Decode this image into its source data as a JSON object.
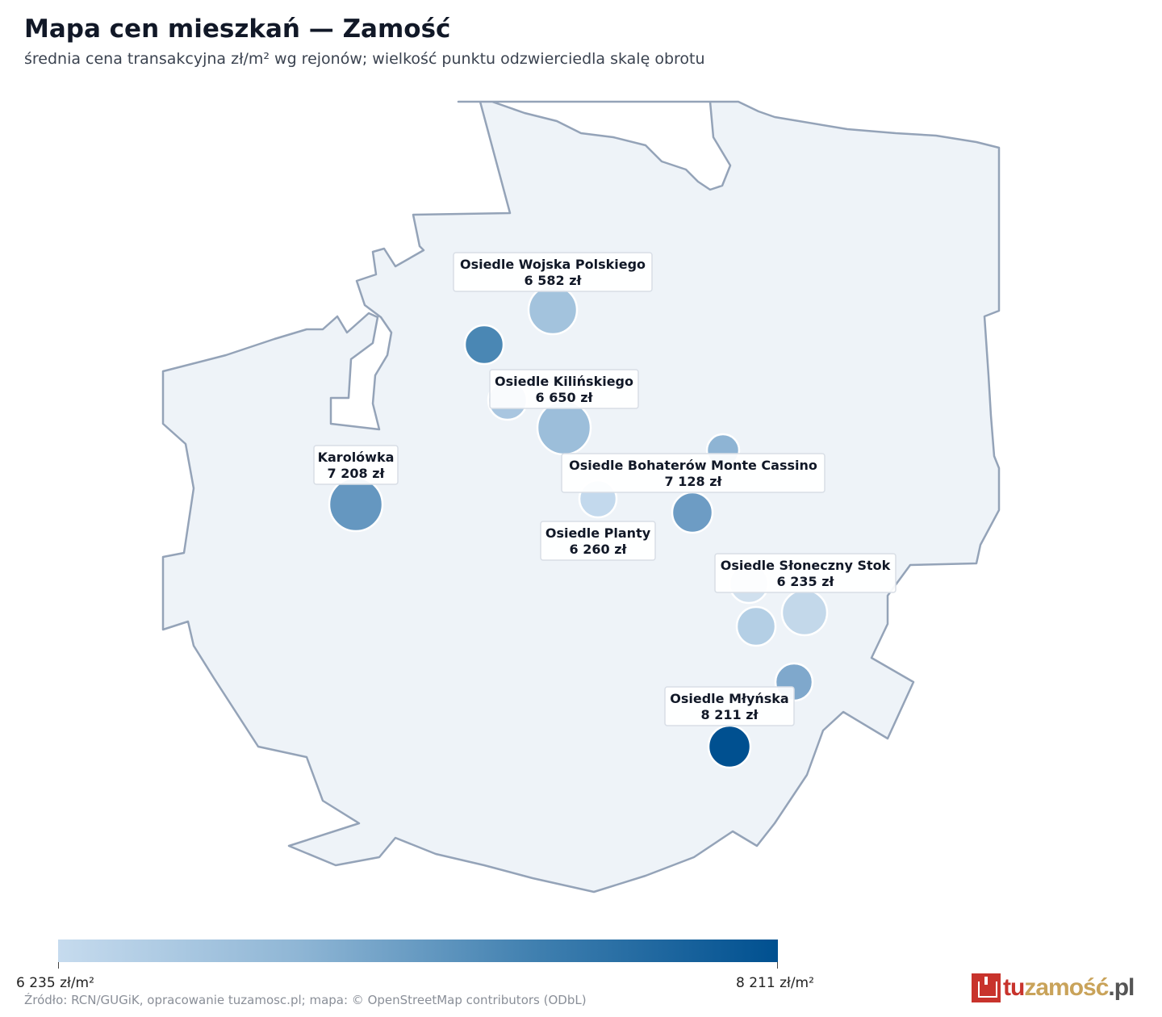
{
  "header": {
    "title": "Mapa cen mieszkań — Zamość",
    "subtitle": "średnia cena transakcyjna zł/m² wg rejonów; wielkość punktu odzwierciedla skalę obrotu"
  },
  "colors": {
    "boundary_fill": "#eef3f8",
    "boundary_stroke": "#94a3b8",
    "scale_low": "#c6dbee",
    "scale_high": "#005090"
  },
  "districts": [
    {
      "name": "Osiedle Wojska Polskiego",
      "price_label": "6 582 zł",
      "price": 6582
    },
    {
      "name": "Osiedle Kilińskiego",
      "price_label": "6 650 zł",
      "price": 6650
    },
    {
      "name": "Karolówka",
      "price_label": "7 208 zł",
      "price": 7208
    },
    {
      "name": "Osiedle Bohaterów Monte Cassino",
      "price_label": "7 128 zł",
      "price": 7128
    },
    {
      "name": "Osiedle Planty",
      "price_label": "6 260 zł",
      "price": 6260
    },
    {
      "name": "Osiedle Słoneczny Stok",
      "price_label": "6 235 zł",
      "price": 6235
    },
    {
      "name": "Osiedle Młyńska",
      "price_label": "8 211 zł",
      "price": 8211
    }
  ],
  "legend": {
    "min_label": "6 235 zł/m²",
    "max_label": "8 211 zł/m²",
    "min": 6235,
    "max": 8211
  },
  "footer": {
    "source": "Źródło: RCN/GUGiK, opracowanie tuzamosc.pl; mapa: © OpenStreetMap contributors (ODbL)"
  },
  "brand": {
    "part1": "tu",
    "part2": "zamość",
    "part3": ".pl",
    "icon": "town-hall-icon"
  }
}
